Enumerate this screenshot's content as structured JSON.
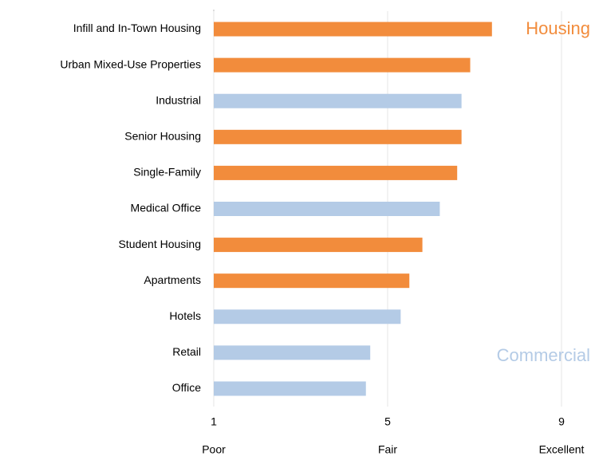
{
  "chart_data": {
    "type": "bar",
    "orientation": "horizontal",
    "categories": [
      "Infill and In-Town Housing",
      "Urban Mixed-Use Properties",
      "Industrial",
      "Senior Housing",
      "Single-Family",
      "Medical Office",
      "Student Housing",
      "Apartments",
      "Hotels",
      "Retail",
      "Office"
    ],
    "series": [
      {
        "name": "Housing",
        "color": "#f28c3c",
        "values": [
          7.4,
          6.9,
          null,
          6.7,
          6.6,
          null,
          5.8,
          5.5,
          null,
          null,
          null
        ]
      },
      {
        "name": "Commercial",
        "color": "#b4cbe6",
        "values": [
          null,
          null,
          6.7,
          null,
          null,
          6.2,
          null,
          null,
          5.3,
          4.6,
          4.5
        ]
      }
    ],
    "xlim": [
      1,
      9
    ],
    "xticks": [
      1,
      5,
      9
    ],
    "x_scale_labels": [
      {
        "value": 1,
        "label": "Poor"
      },
      {
        "value": 5,
        "label": "Fair"
      },
      {
        "value": 9,
        "label": "Excellent"
      }
    ],
    "grid": true
  }
}
